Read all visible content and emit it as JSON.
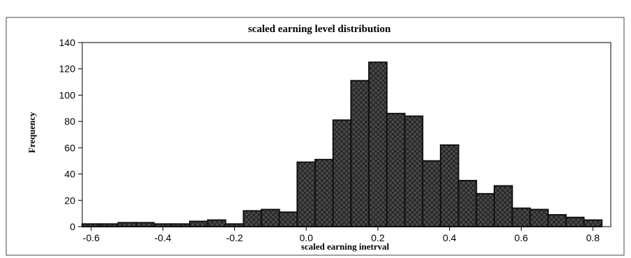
{
  "chart_data": {
    "type": "bar",
    "title": "scaled earning level distribution",
    "xlabel": "scaled earning inetrval",
    "ylabel": "Frequency",
    "xlim": [
      -0.625,
      0.85
    ],
    "ylim": [
      0,
      140
    ],
    "x_ticks": [
      "-0.6",
      "-0.4",
      "-0.2",
      "0.0",
      "0.2",
      "0.4",
      "0.6",
      "0.8"
    ],
    "y_ticks": [
      "0",
      "20",
      "40",
      "60",
      "80",
      "100",
      "120",
      "140"
    ],
    "bin_width": 0.05,
    "bins": [
      {
        "x": -0.6,
        "value": 2
      },
      {
        "x": -0.55,
        "value": 2
      },
      {
        "x": -0.5,
        "value": 3
      },
      {
        "x": -0.45,
        "value": 3
      },
      {
        "x": -0.4,
        "value": 2
      },
      {
        "x": -0.35,
        "value": 2
      },
      {
        "x": -0.3,
        "value": 4
      },
      {
        "x": -0.25,
        "value": 5
      },
      {
        "x": -0.2,
        "value": 2
      },
      {
        "x": -0.15,
        "value": 12
      },
      {
        "x": -0.1,
        "value": 13
      },
      {
        "x": -0.05,
        "value": 11
      },
      {
        "x": 0.0,
        "value": 49
      },
      {
        "x": 0.05,
        "value": 51
      },
      {
        "x": 0.1,
        "value": 81
      },
      {
        "x": 0.15,
        "value": 111
      },
      {
        "x": 0.2,
        "value": 125
      },
      {
        "x": 0.25,
        "value": 86
      },
      {
        "x": 0.3,
        "value": 84
      },
      {
        "x": 0.35,
        "value": 50
      },
      {
        "x": 0.4,
        "value": 62
      },
      {
        "x": 0.45,
        "value": 35
      },
      {
        "x": 0.5,
        "value": 25
      },
      {
        "x": 0.55,
        "value": 31
      },
      {
        "x": 0.6,
        "value": 14
      },
      {
        "x": 0.65,
        "value": 13
      },
      {
        "x": 0.7,
        "value": 9
      },
      {
        "x": 0.75,
        "value": 7
      },
      {
        "x": 0.8,
        "value": 5
      }
    ],
    "grid": false,
    "legend": "none",
    "colors": {
      "bar_fill": "#4a4a4a",
      "bar_edge": "#111111",
      "hatch": "#1a1a1a",
      "axis": "#000000",
      "background": "#ffffff"
    }
  }
}
